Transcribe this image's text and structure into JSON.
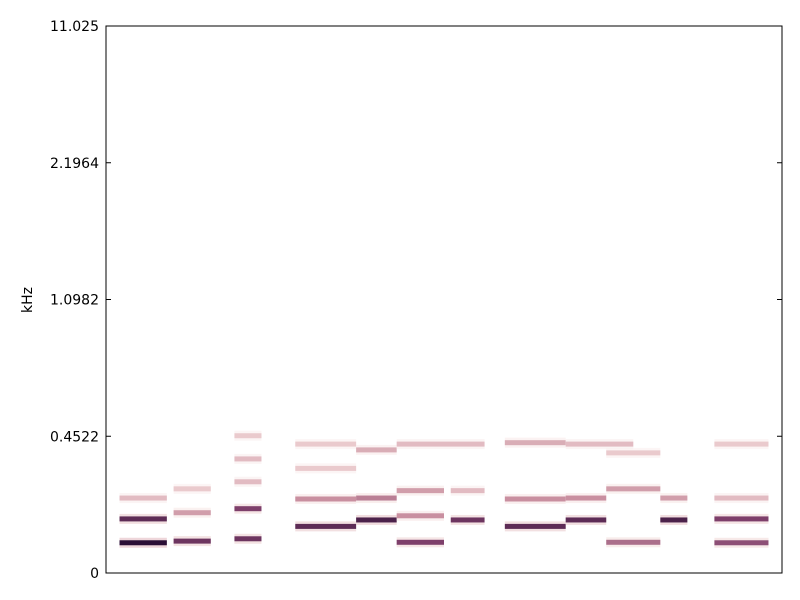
{
  "chart_data": {
    "type": "heatmap",
    "title": "",
    "xlabel": "",
    "ylabel": "kHz",
    "y_scale": "mel",
    "y_ticks": [
      "11.025",
      "2.1964",
      "1.0982",
      "0.4522",
      "0"
    ],
    "x_ticks": [],
    "colormap": [
      "#ffffff",
      "#f2d9d8",
      "#c98fa0",
      "#7e3f6b",
      "#2b0f36"
    ],
    "xlim": [
      0,
      1
    ],
    "ylim_khz": [
      0,
      11.025
    ],
    "segments": [
      {
        "x0": 0.02,
        "x1": 0.09,
        "f": 0.118,
        "i": 1.0
      },
      {
        "x0": 0.02,
        "x1": 0.09,
        "f": 0.225,
        "i": 0.85
      },
      {
        "x0": 0.02,
        "x1": 0.09,
        "f": 0.33,
        "i": 0.35
      },
      {
        "x0": 0.1,
        "x1": 0.155,
        "f": 0.125,
        "i": 0.8
      },
      {
        "x0": 0.1,
        "x1": 0.155,
        "f": 0.255,
        "i": 0.45
      },
      {
        "x0": 0.1,
        "x1": 0.155,
        "f": 0.38,
        "i": 0.3
      },
      {
        "x0": 0.19,
        "x1": 0.23,
        "f": 0.135,
        "i": 0.8
      },
      {
        "x0": 0.19,
        "x1": 0.23,
        "f": 0.275,
        "i": 0.75
      },
      {
        "x0": 0.19,
        "x1": 0.23,
        "f": 0.42,
        "i": 0.35
      },
      {
        "x0": 0.19,
        "x1": 0.23,
        "f": 0.56,
        "i": 0.35
      },
      {
        "x0": 0.19,
        "x1": 0.23,
        "f": 0.72,
        "i": 0.3
      },
      {
        "x0": 0.28,
        "x1": 0.37,
        "f": 0.19,
        "i": 0.85
      },
      {
        "x0": 0.28,
        "x1": 0.37,
        "f": 0.325,
        "i": 0.5
      },
      {
        "x0": 0.28,
        "x1": 0.37,
        "f": 0.5,
        "i": 0.3
      },
      {
        "x0": 0.28,
        "x1": 0.37,
        "f": 0.66,
        "i": 0.3
      },
      {
        "x0": 0.37,
        "x1": 0.43,
        "f": 0.22,
        "i": 0.9
      },
      {
        "x0": 0.37,
        "x1": 0.43,
        "f": 0.33,
        "i": 0.55
      },
      {
        "x0": 0.37,
        "x1": 0.43,
        "f": 0.62,
        "i": 0.4
      },
      {
        "x0": 0.43,
        "x1": 0.5,
        "f": 0.12,
        "i": 0.75
      },
      {
        "x0": 0.43,
        "x1": 0.5,
        "f": 0.24,
        "i": 0.5
      },
      {
        "x0": 0.43,
        "x1": 0.5,
        "f": 0.37,
        "i": 0.45
      },
      {
        "x0": 0.43,
        "x1": 0.56,
        "f": 0.66,
        "i": 0.35
      },
      {
        "x0": 0.51,
        "x1": 0.56,
        "f": 0.22,
        "i": 0.8
      },
      {
        "x0": 0.51,
        "x1": 0.56,
        "f": 0.37,
        "i": 0.35
      },
      {
        "x0": 0.59,
        "x1": 0.68,
        "f": 0.19,
        "i": 0.85
      },
      {
        "x0": 0.59,
        "x1": 0.68,
        "f": 0.325,
        "i": 0.5
      },
      {
        "x0": 0.59,
        "x1": 0.68,
        "f": 0.67,
        "i": 0.4
      },
      {
        "x0": 0.68,
        "x1": 0.74,
        "f": 0.22,
        "i": 0.85
      },
      {
        "x0": 0.68,
        "x1": 0.74,
        "f": 0.33,
        "i": 0.5
      },
      {
        "x0": 0.68,
        "x1": 0.78,
        "f": 0.66,
        "i": 0.35
      },
      {
        "x0": 0.74,
        "x1": 0.82,
        "f": 0.12,
        "i": 0.6
      },
      {
        "x0": 0.74,
        "x1": 0.82,
        "f": 0.38,
        "i": 0.45
      },
      {
        "x0": 0.74,
        "x1": 0.82,
        "f": 0.6,
        "i": 0.3
      },
      {
        "x0": 0.82,
        "x1": 0.86,
        "f": 0.22,
        "i": 0.9
      },
      {
        "x0": 0.82,
        "x1": 0.86,
        "f": 0.33,
        "i": 0.45
      },
      {
        "x0": 0.9,
        "x1": 0.98,
        "f": 0.118,
        "i": 0.7
      },
      {
        "x0": 0.9,
        "x1": 0.98,
        "f": 0.225,
        "i": 0.75
      },
      {
        "x0": 0.9,
        "x1": 0.98,
        "f": 0.33,
        "i": 0.35
      },
      {
        "x0": 0.9,
        "x1": 0.98,
        "f": 0.66,
        "i": 0.3
      }
    ]
  }
}
